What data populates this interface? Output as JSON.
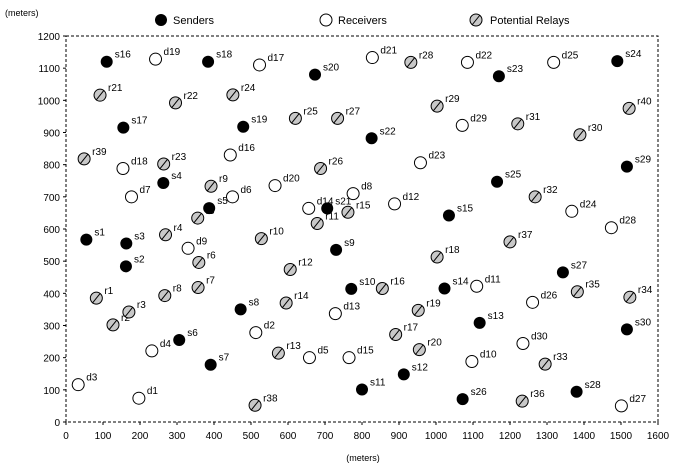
{
  "legend": {
    "senders": "Senders",
    "receivers": "Receivers",
    "relays": "Potential Relays"
  },
  "axes": {
    "x_unit": "(meters)",
    "y_unit": "(meters)"
  },
  "chart_data": {
    "type": "scatter",
    "xlim": [
      0,
      1600
    ],
    "ylim": [
      0,
      1200
    ],
    "x_ticks": [
      0,
      100,
      200,
      300,
      400,
      500,
      600,
      700,
      800,
      900,
      1000,
      1100,
      1200,
      1300,
      1400,
      1500,
      1600
    ],
    "y_ticks": [
      0,
      100,
      200,
      300,
      400,
      500,
      600,
      700,
      800,
      900,
      1000,
      1100,
      1200
    ],
    "series": [
      {
        "name": "Senders",
        "points": [
          {
            "label": "s1",
            "x": 55,
            "y": 567
          },
          {
            "label": "s2",
            "x": 162,
            "y": 484
          },
          {
            "label": "s3",
            "x": 163,
            "y": 555
          },
          {
            "label": "s4",
            "x": 263,
            "y": 743
          },
          {
            "label": "s5",
            "x": 387,
            "y": 665
          },
          {
            "label": "s6",
            "x": 306,
            "y": 255
          },
          {
            "label": "s7",
            "x": 391,
            "y": 178
          },
          {
            "label": "s8",
            "x": 472,
            "y": 350
          },
          {
            "label": "s9",
            "x": 730,
            "y": 535
          },
          {
            "label": "s10",
            "x": 771,
            "y": 414
          },
          {
            "label": "s11",
            "x": 800,
            "y": 101
          },
          {
            "label": "s12",
            "x": 913,
            "y": 148
          },
          {
            "label": "s13",
            "x": 1118,
            "y": 308
          },
          {
            "label": "s14",
            "x": 1023,
            "y": 415
          },
          {
            "label": "s15",
            "x": 1035,
            "y": 642
          },
          {
            "label": "s16",
            "x": 110,
            "y": 1120
          },
          {
            "label": "s17",
            "x": 155,
            "y": 915
          },
          {
            "label": "s18",
            "x": 384,
            "y": 1120
          },
          {
            "label": "s19",
            "x": 479,
            "y": 918
          },
          {
            "label": "s20",
            "x": 673,
            "y": 1080
          },
          {
            "label": "s21",
            "x": 706,
            "y": 664
          },
          {
            "label": "s22",
            "x": 826,
            "y": 882
          },
          {
            "label": "s23",
            "x": 1170,
            "y": 1075
          },
          {
            "label": "s24",
            "x": 1490,
            "y": 1122
          },
          {
            "label": "s25",
            "x": 1165,
            "y": 747
          },
          {
            "label": "s26",
            "x": 1072,
            "y": 71
          },
          {
            "label": "s27",
            "x": 1343,
            "y": 465
          },
          {
            "label": "s28",
            "x": 1380,
            "y": 94
          },
          {
            "label": "s29",
            "x": 1516,
            "y": 794
          },
          {
            "label": "s30",
            "x": 1516,
            "y": 288
          }
        ]
      },
      {
        "name": "Receivers",
        "points": [
          {
            "label": "d1",
            "x": 197,
            "y": 74
          },
          {
            "label": "d2",
            "x": 513,
            "y": 278
          },
          {
            "label": "d3",
            "x": 33,
            "y": 116
          },
          {
            "label": "d4",
            "x": 232,
            "y": 221
          },
          {
            "label": "d5",
            "x": 658,
            "y": 200
          },
          {
            "label": "d6",
            "x": 450,
            "y": 700
          },
          {
            "label": "d7",
            "x": 177,
            "y": 700
          },
          {
            "label": "d8",
            "x": 776,
            "y": 710
          },
          {
            "label": "d9",
            "x": 330,
            "y": 540
          },
          {
            "label": "d10",
            "x": 1097,
            "y": 188
          },
          {
            "label": "d11",
            "x": 1110,
            "y": 422
          },
          {
            "label": "d12",
            "x": 888,
            "y": 678
          },
          {
            "label": "d13",
            "x": 728,
            "y": 337
          },
          {
            "label": "d14",
            "x": 656,
            "y": 664
          },
          {
            "label": "d15",
            "x": 765,
            "y": 200
          },
          {
            "label": "d16",
            "x": 444,
            "y": 830
          },
          {
            "label": "d17",
            "x": 523,
            "y": 1110
          },
          {
            "label": "d18",
            "x": 154,
            "y": 788
          },
          {
            "label": "d19",
            "x": 242,
            "y": 1128
          },
          {
            "label": "d20",
            "x": 565,
            "y": 735
          },
          {
            "label": "d21",
            "x": 828,
            "y": 1133
          },
          {
            "label": "d22",
            "x": 1085,
            "y": 1118
          },
          {
            "label": "d23",
            "x": 958,
            "y": 806
          },
          {
            "label": "d24",
            "x": 1367,
            "y": 655
          },
          {
            "label": "d25",
            "x": 1318,
            "y": 1118
          },
          {
            "label": "d26",
            "x": 1261,
            "y": 372
          },
          {
            "label": "d27",
            "x": 1501,
            "y": 50
          },
          {
            "label": "d28",
            "x": 1474,
            "y": 604
          },
          {
            "label": "d29",
            "x": 1071,
            "y": 922
          },
          {
            "label": "d30",
            "x": 1235,
            "y": 244
          }
        ]
      },
      {
        "name": "Potential Relays",
        "points": [
          {
            "label": "r1",
            "x": 82,
            "y": 385
          },
          {
            "label": "r2",
            "x": 127,
            "y": 302
          },
          {
            "label": "r3",
            "x": 170,
            "y": 342
          },
          {
            "label": "r4",
            "x": 269,
            "y": 582
          },
          {
            "label": "r5",
            "x": 356,
            "y": 634
          },
          {
            "label": "r6",
            "x": 359,
            "y": 496
          },
          {
            "label": "r7",
            "x": 357,
            "y": 418
          },
          {
            "label": "r8",
            "x": 267,
            "y": 393
          },
          {
            "label": "r9",
            "x": 392,
            "y": 733
          },
          {
            "label": "r10",
            "x": 528,
            "y": 570
          },
          {
            "label": "r11",
            "x": 679,
            "y": 617
          },
          {
            "label": "r12",
            "x": 606,
            "y": 474
          },
          {
            "label": "r13",
            "x": 574,
            "y": 214
          },
          {
            "label": "r14",
            "x": 595,
            "y": 370
          },
          {
            "label": "r15",
            "x": 762,
            "y": 652
          },
          {
            "label": "r16",
            "x": 855,
            "y": 415
          },
          {
            "label": "r17",
            "x": 891,
            "y": 272
          },
          {
            "label": "r18",
            "x": 1003,
            "y": 513
          },
          {
            "label": "r19",
            "x": 952,
            "y": 347
          },
          {
            "label": "r20",
            "x": 955,
            "y": 225
          },
          {
            "label": "r21",
            "x": 92,
            "y": 1016
          },
          {
            "label": "r22",
            "x": 296,
            "y": 992
          },
          {
            "label": "r23",
            "x": 264,
            "y": 802
          },
          {
            "label": "r24",
            "x": 451,
            "y": 1017
          },
          {
            "label": "r25",
            "x": 620,
            "y": 944
          },
          {
            "label": "r26",
            "x": 688,
            "y": 788
          },
          {
            "label": "r27",
            "x": 734,
            "y": 944
          },
          {
            "label": "r28",
            "x": 932,
            "y": 1118
          },
          {
            "label": "r29",
            "x": 1003,
            "y": 982
          },
          {
            "label": "r30",
            "x": 1389,
            "y": 893
          },
          {
            "label": "r31",
            "x": 1221,
            "y": 927
          },
          {
            "label": "r32",
            "x": 1268,
            "y": 700
          },
          {
            "label": "r33",
            "x": 1295,
            "y": 180
          },
          {
            "label": "r34",
            "x": 1524,
            "y": 388
          },
          {
            "label": "r35",
            "x": 1382,
            "y": 405
          },
          {
            "label": "r36",
            "x": 1233,
            "y": 65
          },
          {
            "label": "r37",
            "x": 1200,
            "y": 560
          },
          {
            "label": "r38",
            "x": 511,
            "y": 52
          },
          {
            "label": "r39",
            "x": 49,
            "y": 818
          },
          {
            "label": "r40",
            "x": 1522,
            "y": 975
          }
        ]
      }
    ]
  }
}
